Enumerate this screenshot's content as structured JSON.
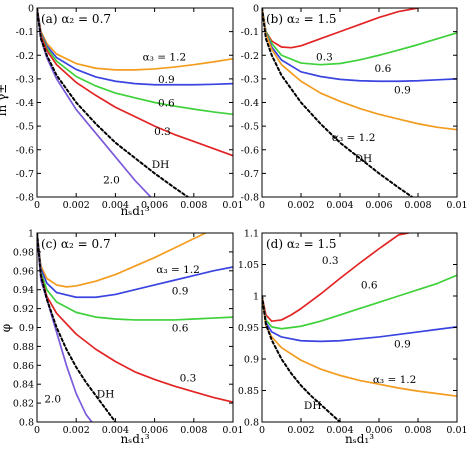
{
  "chart_data": [
    {
      "type": "line",
      "panel": "(a)",
      "title": "(a) α₂ = 0.7",
      "xlabel": "nₛd₁³",
      "ylabel": "ln γ±",
      "xlim": [
        0,
        0.01
      ],
      "ylim": [
        -0.8,
        0
      ],
      "xticks": [
        "0",
        "0.002",
        "0.004",
        "0.006",
        "0.008",
        "0.01"
      ],
      "yticks": [
        "0",
        "-0.1",
        "-0.2",
        "-0.3",
        "-0.4",
        "-0.5",
        "-0.6",
        "-0.7",
        "-0.8"
      ],
      "series": [
        {
          "name": "α₃ = 1.2",
          "color": "#f39c1f",
          "dash": "solid",
          "x": [
            0,
            0.0002,
            0.0005,
            0.001,
            0.002,
            0.003,
            0.004,
            0.005,
            0.006,
            0.007,
            0.008,
            0.009,
            0.01
          ],
          "y": [
            0,
            -0.1,
            -0.15,
            -0.195,
            -0.235,
            -0.255,
            -0.262,
            -0.262,
            -0.258,
            -0.25,
            -0.24,
            -0.228,
            -0.215
          ]
        },
        {
          "name": "0.9",
          "color": "#3a44e0",
          "dash": "solid",
          "x": [
            0,
            0.0002,
            0.0005,
            0.001,
            0.002,
            0.003,
            0.004,
            0.005,
            0.006,
            0.007,
            0.008,
            0.009,
            0.01
          ],
          "y": [
            0,
            -0.105,
            -0.16,
            -0.21,
            -0.26,
            -0.292,
            -0.31,
            -0.32,
            -0.325,
            -0.325,
            -0.325,
            -0.323,
            -0.32
          ]
        },
        {
          "name": "0.6",
          "color": "#3fd13a",
          "dash": "solid",
          "x": [
            0,
            0.0002,
            0.0005,
            0.001,
            0.002,
            0.003,
            0.004,
            0.005,
            0.006,
            0.007,
            0.008,
            0.009,
            0.01
          ],
          "y": [
            0,
            -0.11,
            -0.17,
            -0.225,
            -0.29,
            -0.33,
            -0.36,
            -0.38,
            -0.4,
            -0.415,
            -0.428,
            -0.44,
            -0.45
          ]
        },
        {
          "name": "0.3",
          "color": "#e22424",
          "dash": "solid",
          "x": [
            0,
            0.0002,
            0.0005,
            0.001,
            0.002,
            0.003,
            0.004,
            0.005,
            0.006,
            0.007,
            0.008,
            0.009,
            0.01
          ],
          "y": [
            0,
            -0.115,
            -0.18,
            -0.24,
            -0.315,
            -0.37,
            -0.42,
            -0.46,
            -0.5,
            -0.535,
            -0.565,
            -0.595,
            -0.625
          ]
        },
        {
          "name": "2.0",
          "color": "#7b5bdb",
          "dash": "solid",
          "x": [
            0,
            0.0002,
            0.0005,
            0.001,
            0.002,
            0.003,
            0.004,
            0.005,
            0.0058
          ],
          "y": [
            0,
            -0.13,
            -0.21,
            -0.3,
            -0.43,
            -0.53,
            -0.63,
            -0.73,
            -0.8
          ]
        },
        {
          "name": "DH",
          "color": "#000000",
          "dash": "dashed",
          "x": [
            0,
            0.0002,
            0.0005,
            0.001,
            0.002,
            0.003,
            0.004,
            0.005,
            0.006,
            0.007,
            0.0077
          ],
          "y": [
            0,
            -0.13,
            -0.2,
            -0.285,
            -0.4,
            -0.49,
            -0.57,
            -0.635,
            -0.7,
            -0.76,
            -0.8
          ]
        }
      ],
      "curve_labels": [
        {
          "text": "α₃ = 1.2",
          "x": 0.0065,
          "y": -0.205
        },
        {
          "text": "0.9",
          "x": 0.0066,
          "y": -0.3
        },
        {
          "text": "0.6",
          "x": 0.0066,
          "y": -0.4
        },
        {
          "text": "0.3",
          "x": 0.0064,
          "y": -0.52
        },
        {
          "text": "2.0",
          "x": 0.0038,
          "y": -0.725
        },
        {
          "text": "DH",
          "x": 0.0063,
          "y": -0.66
        }
      ]
    },
    {
      "type": "line",
      "panel": "(b)",
      "title": "(b) α₂ = 1.5",
      "xlabel": "",
      "ylabel": "",
      "xlim": [
        0,
        0.01
      ],
      "ylim": [
        -0.8,
        0
      ],
      "xticks": [
        "0",
        "0.002",
        "0.004",
        "0.006",
        "0.008",
        "0.01"
      ],
      "yticks": [
        "0",
        "-0.1",
        "-0.2",
        "-0.3",
        "-0.4",
        "-0.5",
        "-0.6",
        "-0.7",
        "-0.8"
      ],
      "series": [
        {
          "name": "0.3",
          "color": "#e22424",
          "dash": "solid",
          "x": [
            0,
            0.0002,
            0.0005,
            0.001,
            0.0015,
            0.002,
            0.003,
            0.004,
            0.005,
            0.006,
            0.007,
            0.008
          ],
          "y": [
            0,
            -0.1,
            -0.14,
            -0.165,
            -0.168,
            -0.16,
            -0.13,
            -0.1,
            -0.07,
            -0.04,
            -0.015,
            0
          ]
        },
        {
          "name": "0.6",
          "color": "#3fd13a",
          "dash": "solid",
          "x": [
            0,
            0.0002,
            0.0005,
            0.001,
            0.002,
            0.003,
            0.004,
            0.005,
            0.006,
            0.007,
            0.008,
            0.009,
            0.01
          ],
          "y": [
            0,
            -0.1,
            -0.15,
            -0.2,
            -0.233,
            -0.24,
            -0.235,
            -0.22,
            -0.2,
            -0.178,
            -0.155,
            -0.13,
            -0.105
          ]
        },
        {
          "name": "0.9",
          "color": "#3a44e0",
          "dash": "solid",
          "x": [
            0,
            0.0002,
            0.0005,
            0.001,
            0.002,
            0.003,
            0.004,
            0.005,
            0.006,
            0.007,
            0.008,
            0.009,
            0.01
          ],
          "y": [
            0,
            -0.105,
            -0.165,
            -0.22,
            -0.27,
            -0.29,
            -0.302,
            -0.308,
            -0.31,
            -0.31,
            -0.308,
            -0.304,
            -0.3
          ]
        },
        {
          "name": "α₃ = 1.2",
          "color": "#f39c1f",
          "dash": "solid",
          "x": [
            0,
            0.0002,
            0.0005,
            0.001,
            0.002,
            0.003,
            0.004,
            0.005,
            0.006,
            0.007,
            0.008,
            0.009,
            0.01
          ],
          "y": [
            0,
            -0.11,
            -0.175,
            -0.24,
            -0.31,
            -0.36,
            -0.395,
            -0.425,
            -0.45,
            -0.47,
            -0.49,
            -0.505,
            -0.515
          ]
        },
        {
          "name": "DH",
          "color": "#000000",
          "dash": "dashed",
          "x": [
            0,
            0.0002,
            0.0005,
            0.001,
            0.002,
            0.003,
            0.004,
            0.005,
            0.006,
            0.007,
            0.0077
          ],
          "y": [
            0,
            -0.13,
            -0.2,
            -0.285,
            -0.4,
            -0.49,
            -0.57,
            -0.635,
            -0.7,
            -0.76,
            -0.8
          ]
        }
      ],
      "curve_labels": [
        {
          "text": "0.3",
          "x": 0.0032,
          "y": -0.205
        },
        {
          "text": "0.6",
          "x": 0.0062,
          "y": -0.255
        },
        {
          "text": "0.9",
          "x": 0.0072,
          "y": -0.345
        },
        {
          "text": "α₃ = 1.2",
          "x": 0.0047,
          "y": -0.545
        },
        {
          "text": "DH",
          "x": 0.0052,
          "y": -0.635
        }
      ]
    },
    {
      "type": "line",
      "panel": "(c)",
      "title": "(c) α₂ = 0.7",
      "xlabel": "nₛd₁³",
      "ylabel": "φ",
      "xlim": [
        0,
        0.01
      ],
      "ylim": [
        0.8,
        1.0
      ],
      "xticks": [
        "0",
        "0.002",
        "0.004",
        "0.006",
        "0.008",
        "0.01"
      ],
      "yticks": [
        "1",
        "0.98",
        "0.96",
        "0.94",
        "0.92",
        "0.9",
        "0.88",
        "0.86",
        "0.84",
        "0.82",
        "0.8"
      ],
      "series": [
        {
          "name": "α₃ = 1.2",
          "color": "#f39c1f",
          "dash": "solid",
          "x": [
            0,
            0.0002,
            0.0005,
            0.001,
            0.0015,
            0.002,
            0.003,
            0.004,
            0.005,
            0.006,
            0.007,
            0.008,
            0.0086
          ],
          "y": [
            1.0,
            0.965,
            0.952,
            0.945,
            0.943,
            0.944,
            0.949,
            0.956,
            0.965,
            0.974,
            0.984,
            0.994,
            1.0
          ]
        },
        {
          "name": "0.9",
          "color": "#3a44e0",
          "dash": "solid",
          "x": [
            0,
            0.0002,
            0.0005,
            0.001,
            0.002,
            0.003,
            0.004,
            0.005,
            0.006,
            0.007,
            0.008,
            0.009,
            0.01
          ],
          "y": [
            1.0,
            0.962,
            0.947,
            0.937,
            0.932,
            0.932,
            0.935,
            0.94,
            0.945,
            0.95,
            0.955,
            0.96,
            0.964
          ]
        },
        {
          "name": "0.6",
          "color": "#3fd13a",
          "dash": "solid",
          "x": [
            0,
            0.0002,
            0.0005,
            0.001,
            0.002,
            0.003,
            0.004,
            0.005,
            0.006,
            0.007,
            0.008,
            0.009,
            0.01
          ],
          "y": [
            1.0,
            0.958,
            0.94,
            0.927,
            0.916,
            0.911,
            0.909,
            0.908,
            0.908,
            0.908,
            0.909,
            0.91,
            0.911
          ]
        },
        {
          "name": "0.3",
          "color": "#e22424",
          "dash": "solid",
          "x": [
            0,
            0.0002,
            0.0005,
            0.001,
            0.002,
            0.003,
            0.004,
            0.005,
            0.006,
            0.007,
            0.008,
            0.009,
            0.01
          ],
          "y": [
            1.0,
            0.955,
            0.933,
            0.915,
            0.893,
            0.877,
            0.864,
            0.853,
            0.845,
            0.838,
            0.832,
            0.826,
            0.821
          ]
        },
        {
          "name": "2.0",
          "color": "#7b5bdb",
          "dash": "solid",
          "x": [
            0,
            0.0002,
            0.0005,
            0.001,
            0.0015,
            0.002,
            0.0025,
            0.0028
          ],
          "y": [
            1.0,
            0.95,
            0.93,
            0.895,
            0.86,
            0.83,
            0.808,
            0.8
          ]
        },
        {
          "name": "DH",
          "color": "#000000",
          "dash": "dashed",
          "x": [
            0,
            0.0002,
            0.0005,
            0.001,
            0.0015,
            0.002,
            0.0025,
            0.003,
            0.0035,
            0.004
          ],
          "y": [
            1.0,
            0.955,
            0.93,
            0.9,
            0.877,
            0.858,
            0.842,
            0.828,
            0.814,
            0.8
          ]
        }
      ],
      "curve_labels": [
        {
          "text": "α₃ = 1.2",
          "x": 0.0072,
          "y": 0.962
        },
        {
          "text": "0.9",
          "x": 0.0073,
          "y": 0.939
        },
        {
          "text": "0.6",
          "x": 0.0073,
          "y": 0.9
        },
        {
          "text": "0.3",
          "x": 0.0077,
          "y": 0.847
        },
        {
          "text": "2.0",
          "x": 0.0008,
          "y": 0.825
        },
        {
          "text": "DH",
          "x": 0.0035,
          "y": 0.83
        }
      ]
    },
    {
      "type": "line",
      "panel": "(d)",
      "title": "(d) α₂ = 1.5",
      "xlabel": "nₛd₁³",
      "ylabel": "",
      "xlim": [
        0,
        0.01
      ],
      "ylim": [
        0.8,
        1.1
      ],
      "xticks": [
        "0",
        "0.002",
        "0.004",
        "0.006",
        "0.008",
        "0.01"
      ],
      "yticks": [
        "1.1",
        "1.05",
        "1",
        "0.95",
        "0.9",
        "0.85",
        "0.8"
      ],
      "series": [
        {
          "name": "0.3",
          "color": "#e22424",
          "dash": "solid",
          "x": [
            0,
            0.0002,
            0.0005,
            0.001,
            0.0015,
            0.002,
            0.003,
            0.004,
            0.005,
            0.006,
            0.007,
            0.0075
          ],
          "y": [
            1.0,
            0.97,
            0.96,
            0.962,
            0.97,
            0.98,
            1.003,
            1.028,
            1.052,
            1.075,
            1.097,
            1.1
          ]
        },
        {
          "name": "0.6",
          "color": "#3fd13a",
          "dash": "solid",
          "x": [
            0,
            0.0002,
            0.0005,
            0.001,
            0.002,
            0.003,
            0.004,
            0.005,
            0.006,
            0.007,
            0.008,
            0.009,
            0.01
          ],
          "y": [
            1.0,
            0.962,
            0.951,
            0.948,
            0.952,
            0.96,
            0.97,
            0.98,
            0.99,
            1.0,
            1.01,
            1.02,
            1.033
          ]
        },
        {
          "name": "0.9",
          "color": "#3a44e0",
          "dash": "solid",
          "x": [
            0,
            0.0002,
            0.0005,
            0.001,
            0.002,
            0.003,
            0.004,
            0.005,
            0.006,
            0.007,
            0.008,
            0.009,
            0.01
          ],
          "y": [
            1.0,
            0.958,
            0.943,
            0.935,
            0.929,
            0.928,
            0.929,
            0.932,
            0.935,
            0.939,
            0.943,
            0.947,
            0.951
          ]
        },
        {
          "name": "α₃ = 1.2",
          "color": "#f39c1f",
          "dash": "solid",
          "x": [
            0,
            0.0002,
            0.0005,
            0.001,
            0.002,
            0.003,
            0.004,
            0.005,
            0.006,
            0.007,
            0.008,
            0.009,
            0.01
          ],
          "y": [
            1.0,
            0.953,
            0.935,
            0.918,
            0.898,
            0.884,
            0.874,
            0.866,
            0.86,
            0.854,
            0.849,
            0.845,
            0.841
          ]
        },
        {
          "name": "DH",
          "color": "#000000",
          "dash": "dashed",
          "x": [
            0,
            0.0002,
            0.0005,
            0.001,
            0.0015,
            0.002,
            0.0025,
            0.003,
            0.0035,
            0.004
          ],
          "y": [
            1.0,
            0.955,
            0.93,
            0.9,
            0.877,
            0.858,
            0.842,
            0.828,
            0.814,
            0.8
          ]
        }
      ],
      "curve_labels": [
        {
          "text": "0.3",
          "x": 0.0035,
          "y": 1.057
        },
        {
          "text": "0.6",
          "x": 0.0055,
          "y": 1.018
        },
        {
          "text": "0.9",
          "x": 0.0072,
          "y": 0.925
        },
        {
          "text": "α₃ = 1.2",
          "x": 0.0068,
          "y": 0.868
        },
        {
          "text": "DH",
          "x": 0.0026,
          "y": 0.827
        }
      ]
    }
  ]
}
